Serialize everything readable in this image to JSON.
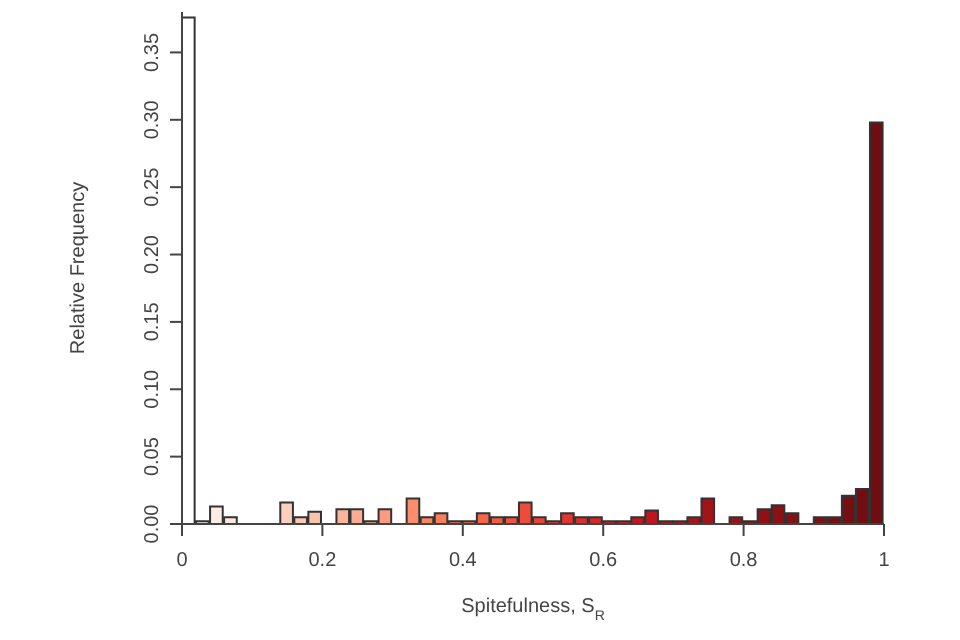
{
  "chart_data": {
    "type": "histogram",
    "xlabel": "Spitefulness, S$_{R}$",
    "ylabel": "Relative Frequency",
    "bins": [
      0,
      0.02,
      0.04,
      0.06,
      0.08,
      0.1,
      0.12,
      0.14,
      0.16,
      0.18,
      0.2,
      0.22,
      0.24,
      0.26,
      0.28,
      0.3,
      0.32,
      0.34,
      0.36,
      0.38,
      0.4,
      0.42,
      0.44,
      0.46,
      0.48,
      0.5,
      0.52,
      0.54,
      0.56,
      0.58,
      0.6,
      0.62,
      0.64,
      0.66,
      0.68,
      0.7,
      0.72,
      0.74,
      0.76,
      0.78,
      0.8,
      0.82,
      0.84,
      0.86,
      0.88,
      0.9,
      0.92,
      0.94,
      0.96,
      0.98,
      1
    ],
    "values": [
      0.376,
      0.002,
      0.013,
      0.005,
      0,
      0,
      0,
      0.016,
      0.005,
      0.009,
      0,
      0.011,
      0.011,
      0.002,
      0.011,
      0,
      0.019,
      0.005,
      0.008,
      0.002,
      0.002,
      0.008,
      0.005,
      0.005,
      0.016,
      0.005,
      0.002,
      0.008,
      0.005,
      0.005,
      0.002,
      0.002,
      0.005,
      0.01,
      0.002,
      0.002,
      0.005,
      0.019,
      0,
      0.005,
      0.002,
      0.011,
      0.014,
      0.008,
      0,
      0.005,
      0.005,
      0.021,
      0.026,
      0.298
    ],
    "colors": [
      "#ffffff",
      "#fff1ea",
      "#ffece3",
      "#fee7dc",
      "#fee2d4",
      "#fedccd",
      "#fdd6c5",
      "#fdd0bd",
      "#fdcab5",
      "#fcc3ac",
      "#fcbca3",
      "#fcb49a",
      "#fcac90",
      "#fca487",
      "#fc9c7e",
      "#fc9475",
      "#fb8c6c",
      "#fb8463",
      "#fb7c5a",
      "#fb7452",
      "#fa6c4a",
      "#f76446",
      "#f45c42",
      "#f1543e",
      "#ee4c3a",
      "#eb4436",
      "#e63c32",
      "#e1352f",
      "#dc2e2b",
      "#d72728",
      "#d22125",
      "#cb1c22",
      "#c4181f",
      "#bd161d",
      "#b6151b",
      "#ae141a",
      "#a71419",
      "#a11418",
      "#9b1317",
      "#961316",
      "#921215",
      "#8e1215",
      "#8a1114",
      "#861114",
      "#821013",
      "#7e1013",
      "#7a0f12",
      "#760f12",
      "#720e11",
      "#6e0e11"
    ],
    "xlim": [
      0,
      1
    ],
    "xticks": [
      0,
      0.2,
      0.4,
      0.6,
      0.8,
      1
    ],
    "ylim": [
      0,
      0.38
    ],
    "yticks": [
      {
        "value": 0,
        "label": "0.00"
      },
      {
        "value": 0.05,
        "label": "0.05"
      },
      {
        "value": 0.1,
        "label": "0.10"
      },
      {
        "value": 0.15,
        "label": "0.15"
      },
      {
        "value": 0.2,
        "label": "0.20"
      },
      {
        "value": 0.25,
        "label": "0.25"
      },
      {
        "value": 0.3,
        "label": "0.30"
      },
      {
        "value": 0.35,
        "label": "0.35"
      }
    ],
    "grid": false,
    "legend": false
  }
}
